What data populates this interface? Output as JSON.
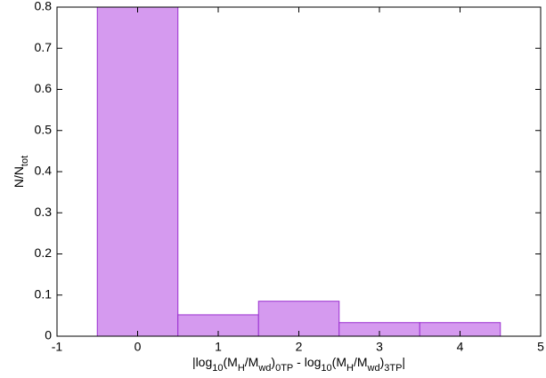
{
  "chart_data": {
    "type": "histogram",
    "bins": [
      -0.5,
      0.5,
      1.5,
      2.5,
      3.5,
      4.5
    ],
    "values": [
      0.8,
      0.052,
      0.085,
      0.033,
      0.033
    ],
    "color": "#d59aef",
    "edgecolor": "#9a2fd0",
    "xlim": [
      -1,
      5
    ],
    "xticks": [
      -1,
      0,
      1,
      2,
      3,
      4,
      5
    ],
    "ylim": [
      0,
      0.8
    ],
    "yticks": [
      0,
      0.1,
      0.2,
      0.3,
      0.4,
      0.5,
      0.6,
      0.7,
      0.8
    ],
    "ylabel": [
      {
        "text": "N/N"
      },
      {
        "text": "tot",
        "sub": true
      }
    ],
    "xlabel": [
      {
        "text": "|log"
      },
      {
        "text": "10",
        "sub": true
      },
      {
        "text": "(M"
      },
      {
        "text": "H",
        "sub": true
      },
      {
        "text": "/M"
      },
      {
        "text": "wd",
        "sub": true
      },
      {
        "text": ")"
      },
      {
        "text": "0TP",
        "sub": true
      },
      {
        "text": " - log"
      },
      {
        "text": "10",
        "sub": true
      },
      {
        "text": "(M"
      },
      {
        "text": "H",
        "sub": true
      },
      {
        "text": "/M"
      },
      {
        "text": "wd",
        "sub": true
      },
      {
        "text": ")"
      },
      {
        "text": "3TP",
        "sub": true
      },
      {
        "text": "|"
      }
    ]
  }
}
